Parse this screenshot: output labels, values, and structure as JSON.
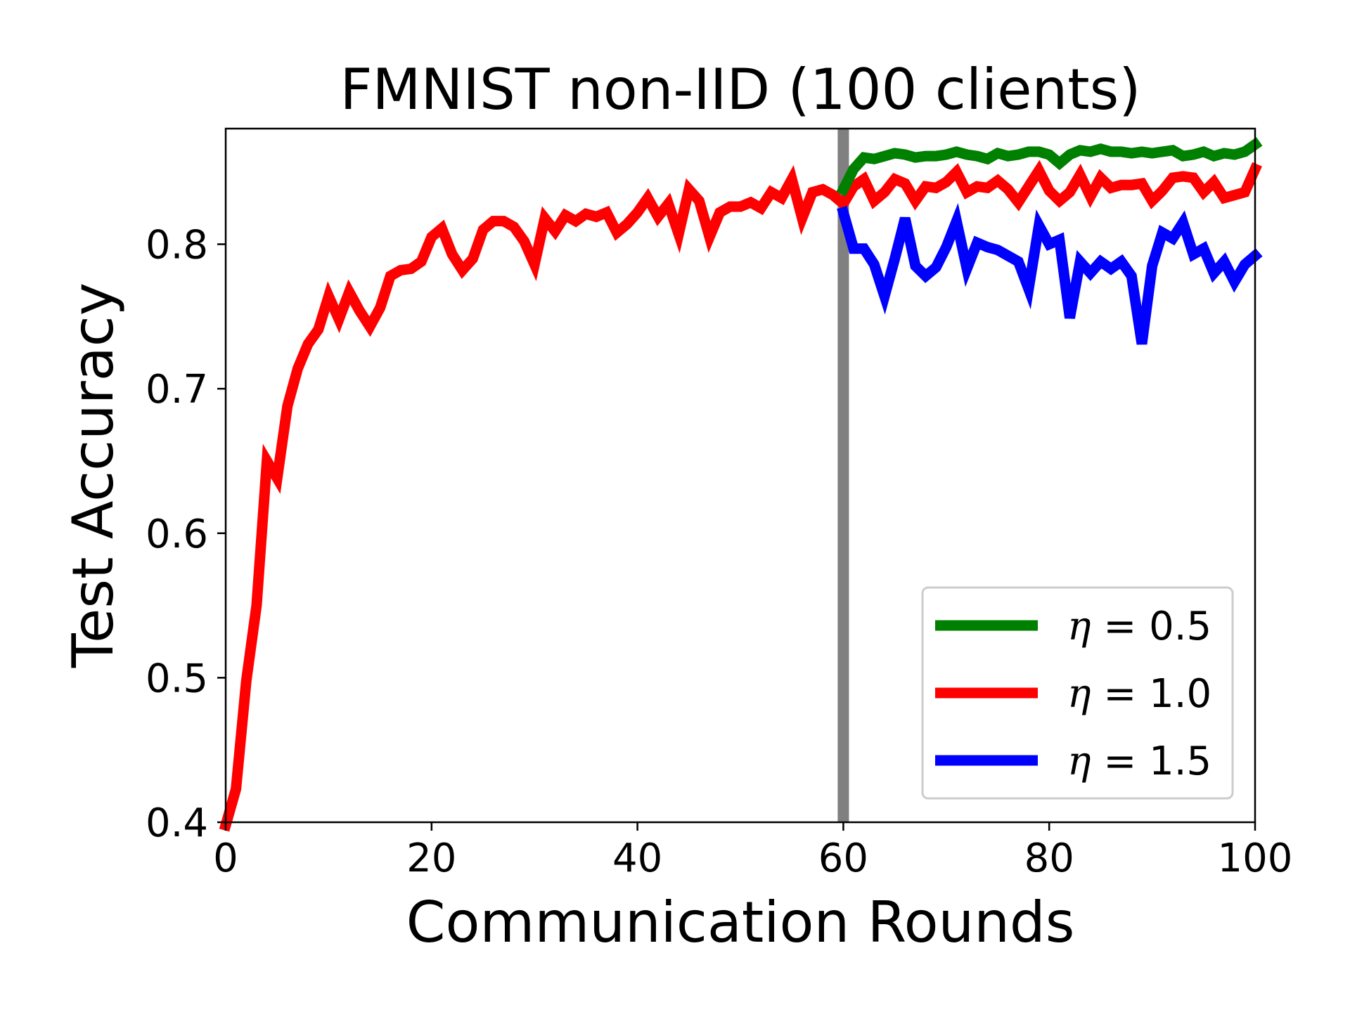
{
  "chart_data": {
    "type": "line",
    "title": "FMNIST non-IID (100 clients)",
    "xlabel": "Communication Rounds",
    "ylabel": "Test Accuracy",
    "xlim": [
      0,
      100
    ],
    "ylim": [
      0.4,
      0.88
    ],
    "xticks": [
      0,
      20,
      40,
      60,
      80,
      100
    ],
    "yticks": [
      0.4,
      0.5,
      0.6,
      0.7,
      0.8
    ],
    "ytick_labels": [
      "0.4",
      "0.5",
      "0.6",
      "0.7",
      "0.8"
    ],
    "xtick_labels": [
      "0",
      "20",
      "40",
      "60",
      "80",
      "100"
    ],
    "grid": false,
    "legend_position": "bottom-right",
    "vline": {
      "x": 60,
      "color": "#808080"
    },
    "series": [
      {
        "name": "η = 0.5",
        "eta": "η",
        "value_label": " = 0.5",
        "color": "#008000",
        "x": [
          60,
          61,
          62,
          63,
          64,
          65,
          66,
          67,
          68,
          69,
          70,
          71,
          72,
          73,
          74,
          75,
          76,
          77,
          78,
          79,
          80,
          81,
          82,
          83,
          84,
          85,
          86,
          87,
          88,
          89,
          90,
          91,
          92,
          93,
          94,
          95,
          96,
          97,
          98,
          99,
          100
        ],
        "y": [
          0.838,
          0.852,
          0.86,
          0.859,
          0.861,
          0.863,
          0.862,
          0.86,
          0.861,
          0.861,
          0.862,
          0.864,
          0.862,
          0.861,
          0.859,
          0.863,
          0.861,
          0.862,
          0.864,
          0.864,
          0.862,
          0.856,
          0.862,
          0.865,
          0.864,
          0.866,
          0.864,
          0.864,
          0.863,
          0.864,
          0.863,
          0.864,
          0.865,
          0.861,
          0.862,
          0.864,
          0.861,
          0.863,
          0.862,
          0.864,
          0.869
        ]
      },
      {
        "name": "η = 1.0",
        "eta": "η",
        "value_label": " = 1.0",
        "color": "#ff0000",
        "x": [
          0,
          1,
          2,
          3,
          4,
          5,
          6,
          7,
          8,
          9,
          10,
          11,
          12,
          13,
          14,
          15,
          16,
          17,
          18,
          19,
          20,
          21,
          22,
          23,
          24,
          25,
          26,
          27,
          28,
          29,
          30,
          31,
          32,
          33,
          34,
          35,
          36,
          37,
          38,
          39,
          40,
          41,
          42,
          43,
          44,
          45,
          46,
          47,
          48,
          49,
          50,
          51,
          52,
          53,
          54,
          55,
          56,
          57,
          58,
          59,
          60,
          61,
          62,
          63,
          64,
          65,
          66,
          67,
          68,
          69,
          70,
          71,
          72,
          73,
          74,
          75,
          76,
          77,
          78,
          79,
          80,
          81,
          82,
          83,
          84,
          85,
          86,
          87,
          88,
          89,
          90,
          91,
          92,
          93,
          94,
          95,
          96,
          97,
          98,
          99,
          100
        ],
        "y": [
          0.398,
          0.423,
          0.498,
          0.55,
          0.65,
          0.638,
          0.688,
          0.714,
          0.731,
          0.741,
          0.764,
          0.748,
          0.767,
          0.754,
          0.743,
          0.756,
          0.778,
          0.782,
          0.783,
          0.788,
          0.805,
          0.811,
          0.793,
          0.782,
          0.79,
          0.81,
          0.816,
          0.816,
          0.812,
          0.802,
          0.786,
          0.818,
          0.809,
          0.82,
          0.816,
          0.821,
          0.819,
          0.822,
          0.808,
          0.814,
          0.822,
          0.832,
          0.819,
          0.828,
          0.807,
          0.838,
          0.83,
          0.805,
          0.822,
          0.826,
          0.826,
          0.829,
          0.825,
          0.836,
          0.832,
          0.845,
          0.818,
          0.836,
          0.838,
          0.834,
          0.828,
          0.84,
          0.845,
          0.83,
          0.836,
          0.845,
          0.842,
          0.83,
          0.84,
          0.839,
          0.843,
          0.85,
          0.836,
          0.84,
          0.839,
          0.844,
          0.838,
          0.829,
          0.84,
          0.851,
          0.837,
          0.83,
          0.836,
          0.848,
          0.833,
          0.846,
          0.839,
          0.841,
          0.841,
          0.842,
          0.83,
          0.837,
          0.846,
          0.847,
          0.846,
          0.836,
          0.843,
          0.832,
          0.834,
          0.836,
          0.852
        ]
      },
      {
        "name": "η = 1.5",
        "eta": "η",
        "value_label": " = 1.5",
        "color": "#0000ff",
        "x": [
          60,
          61,
          62,
          63,
          64,
          65,
          66,
          67,
          68,
          69,
          70,
          71,
          72,
          73,
          74,
          75,
          76,
          77,
          78,
          79,
          80,
          81,
          82,
          83,
          84,
          85,
          86,
          87,
          88,
          89,
          90,
          91,
          92,
          93,
          94,
          95,
          96,
          97,
          98,
          99,
          100
        ],
        "y": [
          0.822,
          0.797,
          0.797,
          0.786,
          0.764,
          0.79,
          0.818,
          0.785,
          0.778,
          0.784,
          0.798,
          0.816,
          0.783,
          0.801,
          0.798,
          0.796,
          0.792,
          0.788,
          0.769,
          0.813,
          0.8,
          0.803,
          0.749,
          0.788,
          0.78,
          0.788,
          0.783,
          0.788,
          0.778,
          0.731,
          0.785,
          0.808,
          0.804,
          0.815,
          0.793,
          0.797,
          0.78,
          0.788,
          0.774,
          0.786,
          0.792
        ]
      }
    ]
  }
}
